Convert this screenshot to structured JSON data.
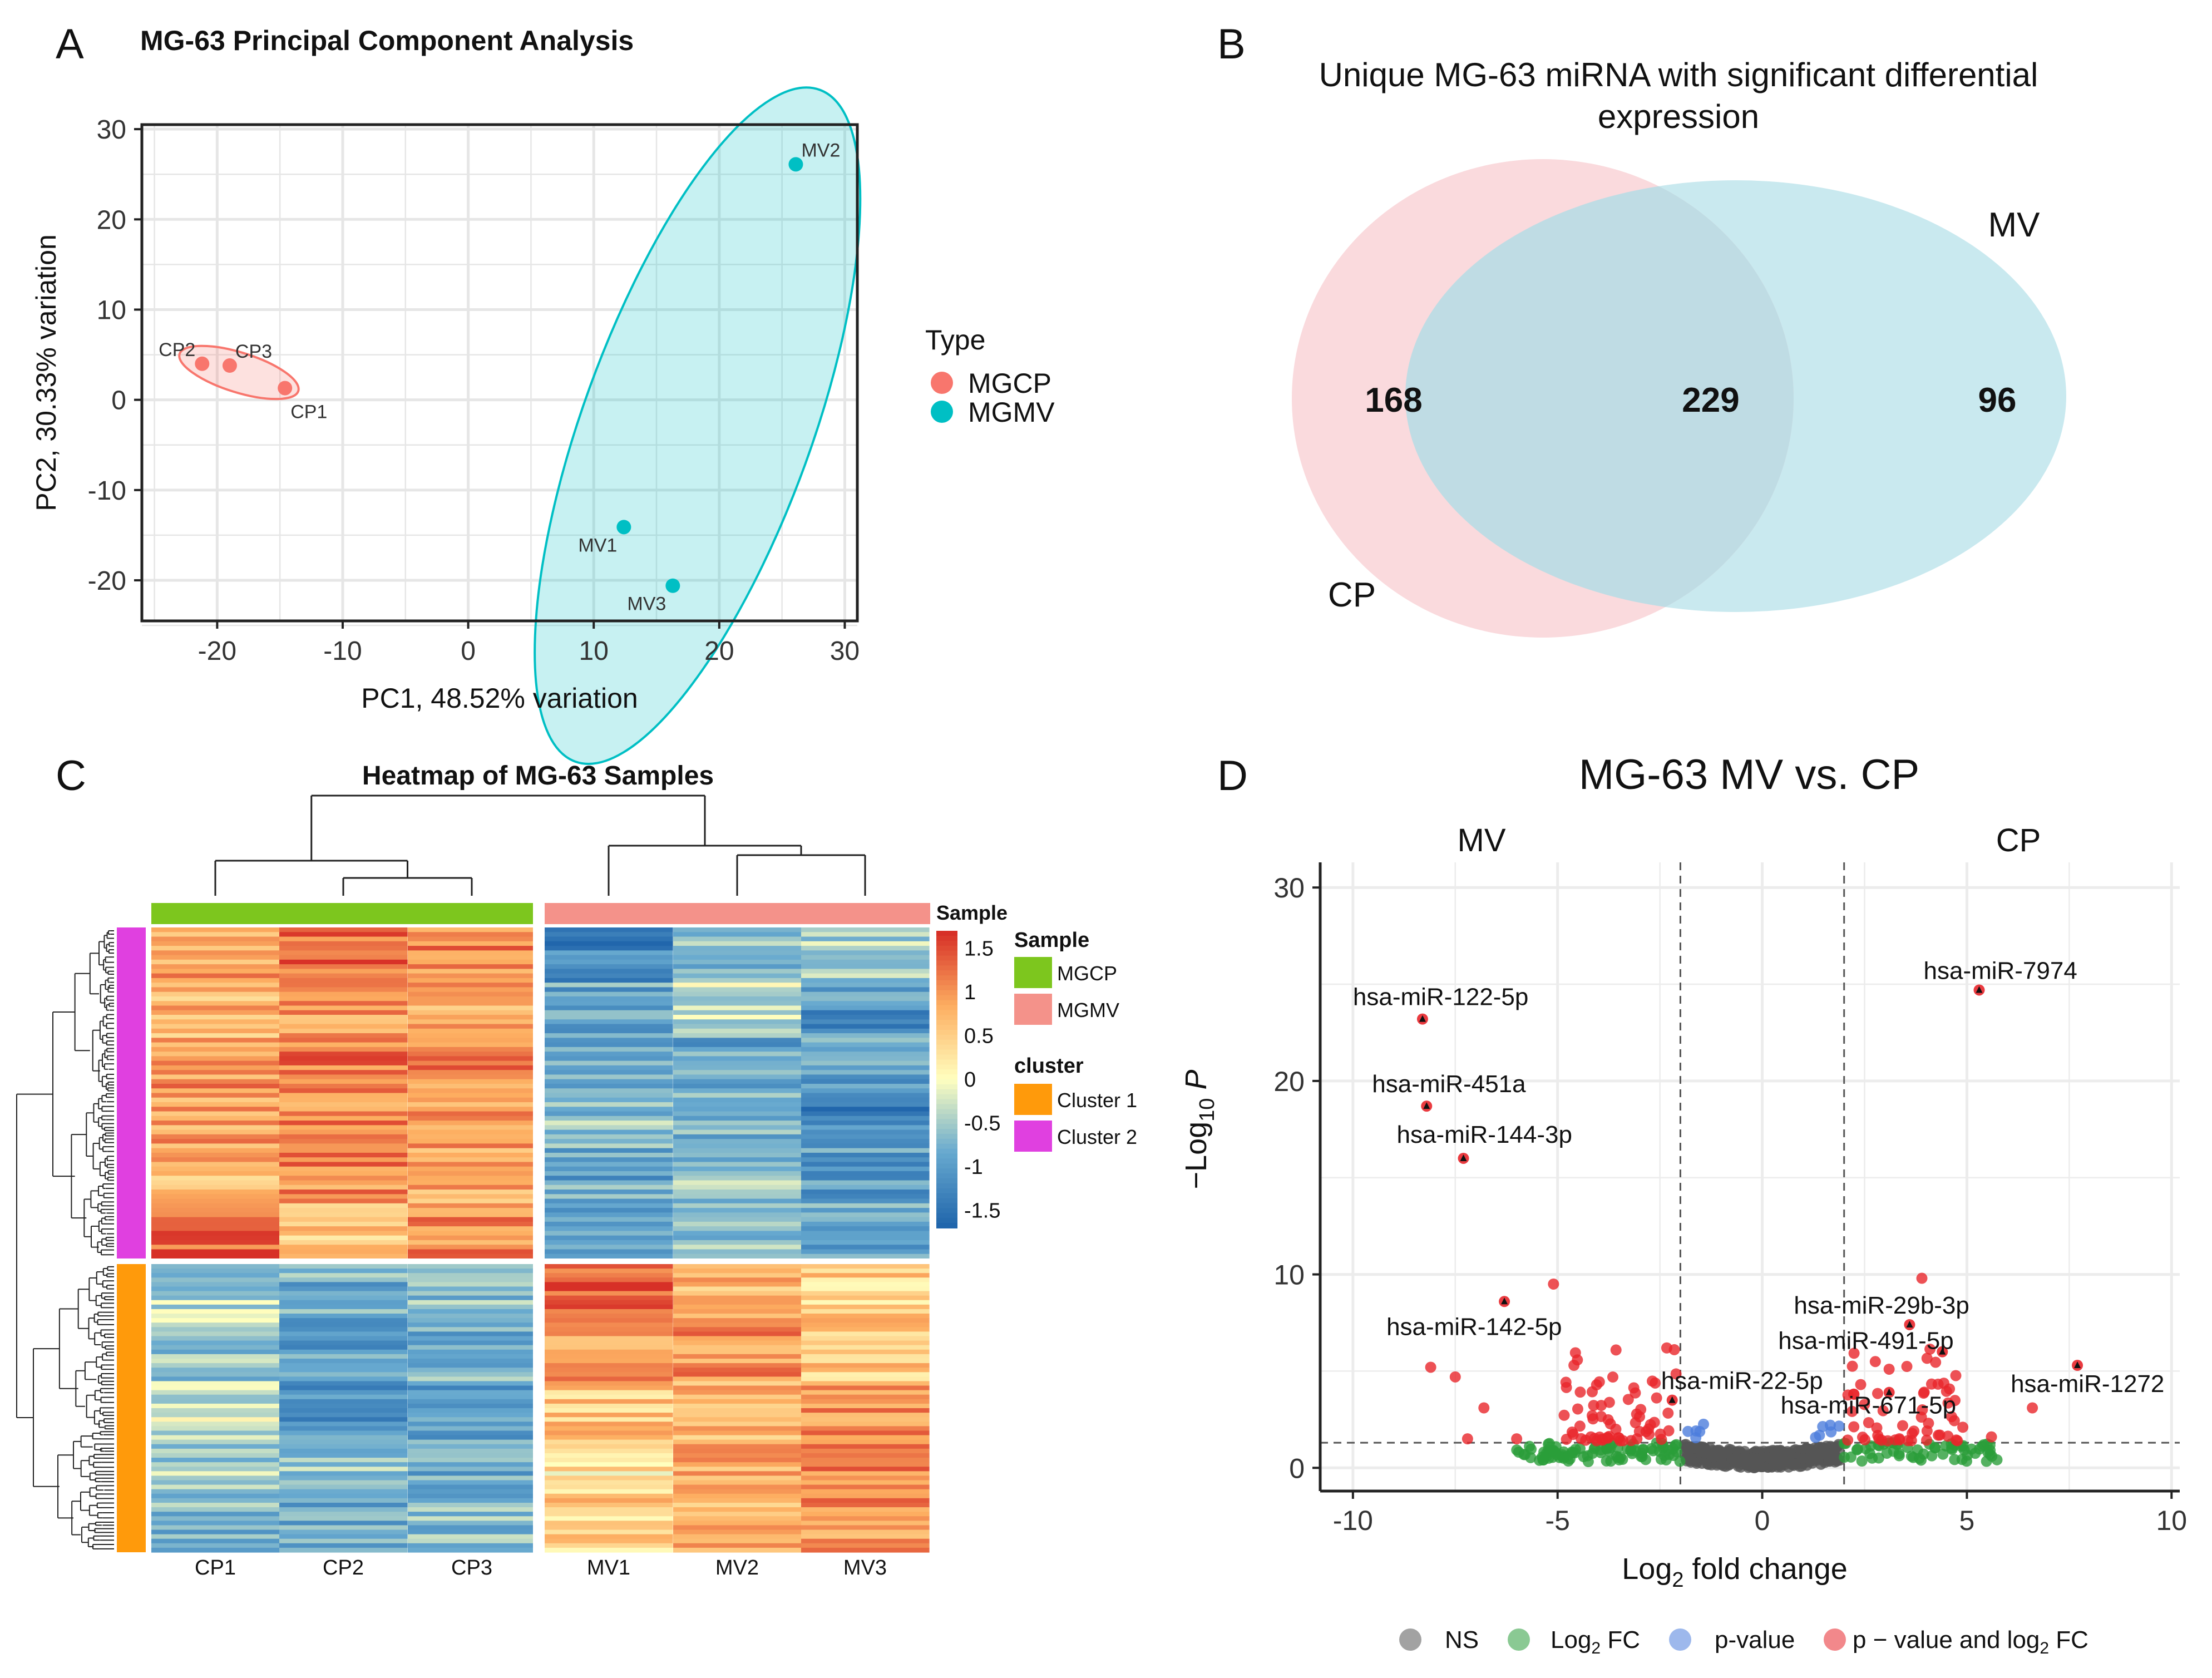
{
  "chart_data": [
    {
      "panel": "A",
      "type": "scatter",
      "title": "MG-63 Principal Component Analysis",
      "xlabel": "PC1, 48.52% variation",
      "ylabel": "PC2, 30.33% variation",
      "xlim": [
        -26,
        31
      ],
      "ylim": [
        -24.5,
        30.5
      ],
      "xticks": [
        -20,
        -10,
        0,
        10,
        20,
        30
      ],
      "yticks": [
        -20,
        -10,
        0,
        10,
        20,
        30
      ],
      "grid": true,
      "legend": {
        "title": "Type",
        "position": "right"
      },
      "colors": {
        "MGCP": "#f8766d",
        "MGMV": "#00bfc4"
      },
      "series": [
        {
          "name": "MGCP",
          "points": [
            {
              "label": "CP1",
              "x": -14.6,
              "y": 1.3
            },
            {
              "label": "CP2",
              "x": -21.2,
              "y": 4.0
            },
            {
              "label": "CP3",
              "x": -19.0,
              "y": 3.8
            }
          ]
        },
        {
          "name": "MGMV",
          "points": [
            {
              "label": "MV1",
              "x": 12.4,
              "y": -14.1
            },
            {
              "label": "MV2",
              "x": 26.1,
              "y": 26.1
            },
            {
              "label": "MV3",
              "x": 16.3,
              "y": -20.6
            }
          ]
        }
      ]
    },
    {
      "panel": "B",
      "type": "venn",
      "title_lines": [
        "Unique MG-63 miRNA with significant differential",
        "expression"
      ],
      "sets": [
        {
          "name": "CP",
          "only": 168,
          "color": "#fadadd"
        },
        {
          "name": "MV",
          "only": 96,
          "color": "#c9e9ef"
        }
      ],
      "intersection": 229
    },
    {
      "panel": "C",
      "type": "heatmap",
      "title": "Heatmap of MG-63 Samples",
      "columns": [
        "CP1",
        "CP2",
        "CP3",
        "MV1",
        "MV2",
        "MV3"
      ],
      "column_groups": [
        {
          "name": "MGCP",
          "columns": [
            "CP1",
            "CP2",
            "CP3"
          ],
          "color": "#7dc61e"
        },
        {
          "name": "MGMV",
          "columns": [
            "MV1",
            "MV2",
            "MV3"
          ],
          "color": "#f4928a"
        }
      ],
      "row_clusters": [
        {
          "name": "Cluster 2",
          "color": "#e040e0"
        },
        {
          "name": "Cluster 1",
          "color": "#ff9a0b"
        }
      ],
      "scale_title": "Sample",
      "scale_ticks": [
        "1.5",
        "1",
        "0.5",
        "0",
        "-0.5",
        "-1",
        "-1.5"
      ],
      "scale_range": [
        -1.7,
        1.7
      ],
      "legend_sample_title": "Sample",
      "legend_cluster_title": "cluster",
      "cluster2_profile": [
        [
          0.9,
          1.3,
          1.1,
          -1.3,
          -0.7,
          -0.5
        ],
        [
          0.8,
          1.0,
          0.9,
          -0.9,
          -0.3,
          -1.1
        ],
        [
          1.0,
          1.2,
          1.1,
          -1.0,
          -0.9,
          -0.9
        ],
        [
          0.9,
          1.1,
          1.0,
          -0.6,
          -0.8,
          -1.3
        ],
        [
          0.8,
          1.1,
          0.9,
          -0.9,
          -0.6,
          -1.0
        ],
        [
          1.4,
          0.6,
          1.1,
          -0.9,
          -0.5,
          -0.9
        ]
      ],
      "cluster1_profile": [
        [
          -0.4,
          -0.8,
          -0.6,
          1.4,
          0.8,
          0.5
        ],
        [
          -0.6,
          -1.0,
          -0.8,
          0.9,
          1.0,
          0.6
        ],
        [
          -0.3,
          -1.1,
          -1.0,
          0.6,
          0.8,
          1.0
        ],
        [
          -0.5,
          -0.6,
          -0.9,
          0.3,
          0.9,
          1.2
        ],
        [
          -0.7,
          -0.9,
          -0.7,
          0.5,
          0.8,
          1.0
        ]
      ]
    },
    {
      "panel": "D",
      "type": "scatter",
      "title": "MG-63 MV vs. CP",
      "xlabel_parts": [
        "Log",
        "2",
        " fold change"
      ],
      "ylabel_parts": [
        "−Log",
        "10",
        " ",
        "P"
      ],
      "xlim": [
        -10.8,
        10.2
      ],
      "ylim": [
        -1.2,
        31.3
      ],
      "xticks": [
        -10,
        -5,
        0,
        5,
        10
      ],
      "yticks": [
        0,
        10,
        20,
        30
      ],
      "grid": true,
      "region_labels": {
        "left": "MV",
        "right": "CP"
      },
      "thresholds": {
        "fc_left": -2,
        "fc_right": 2,
        "p": 1.3
      },
      "legend": {
        "position": "bottom"
      },
      "categories": [
        {
          "name": "NS",
          "color": "#555555"
        },
        {
          "name_parts": [
            "Log",
            "2",
            " FC"
          ],
          "color": "#2a9d3a"
        },
        {
          "name": "p-value",
          "color": "#4c7ddc"
        },
        {
          "name_parts": [
            "p − value and log",
            "2",
            " FC"
          ],
          "color": "#e8262b"
        }
      ],
      "labeled_points": [
        {
          "label": "hsa-miR-7974",
          "x": 5.3,
          "y": 24.7
        },
        {
          "label": "hsa-miR-122-5p",
          "x": -8.3,
          "y": 23.2
        },
        {
          "label": "hsa-miR-451a",
          "x": -8.2,
          "y": 18.7
        },
        {
          "label": "hsa-miR-144-3p",
          "x": -7.3,
          "y": 16.0
        },
        {
          "label": "hsa-miR-142-5p",
          "x": -6.3,
          "y": 8.6
        },
        {
          "label": "hsa-miR-29b-3p",
          "x": 3.6,
          "y": 7.4
        },
        {
          "label": "hsa-miR-491-5p",
          "x": 4.4,
          "y": 6.0
        },
        {
          "label": "hsa-miR-22-5p",
          "x": -2.2,
          "y": 3.5
        },
        {
          "label": "hsa-miR-1272",
          "x": 7.7,
          "y": 5.3
        },
        {
          "label": "hsa-miR-671-5p",
          "x": 3.1,
          "y": 3.9
        }
      ]
    }
  ],
  "panel_letters": [
    "A",
    "B",
    "C",
    "D"
  ]
}
